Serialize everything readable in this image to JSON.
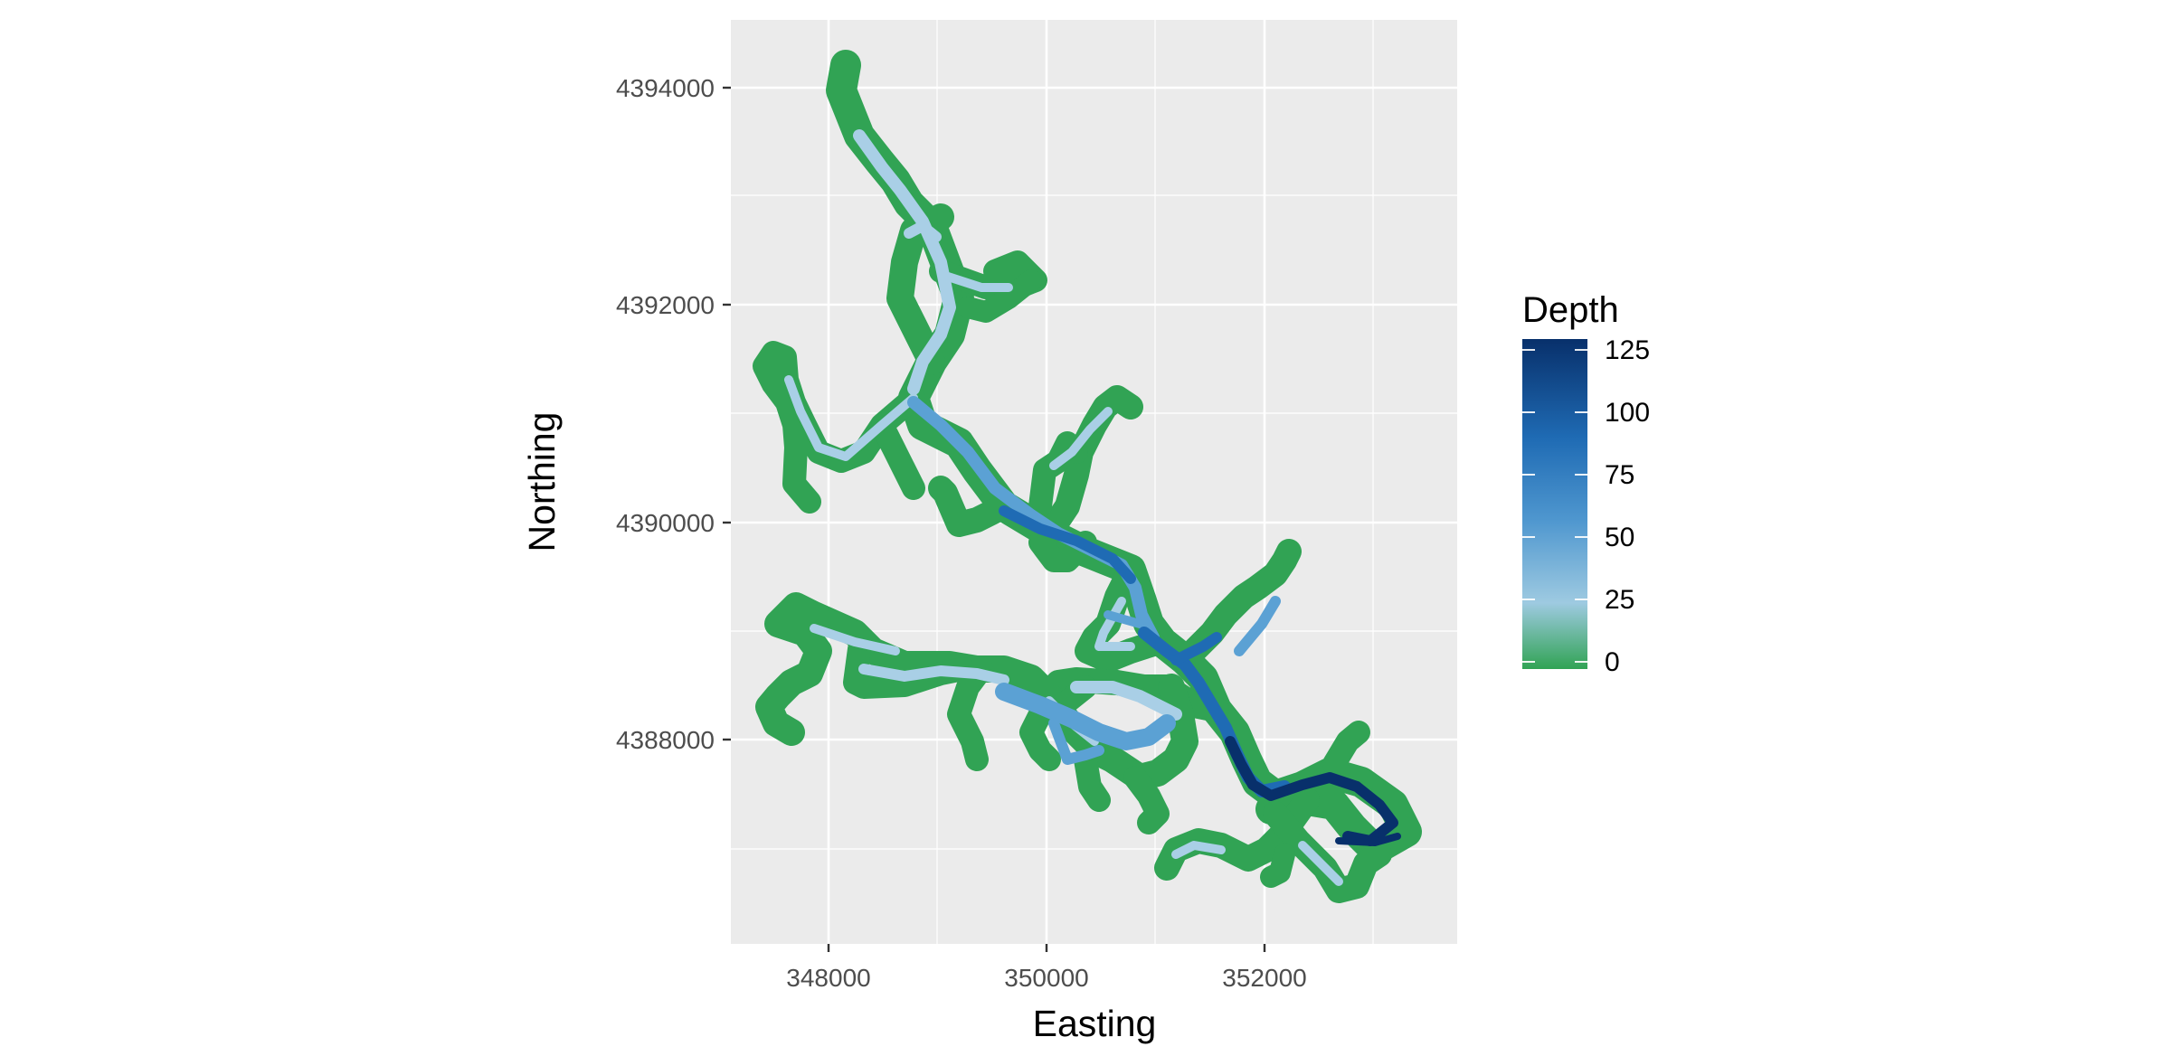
{
  "map": {
    "xlabel": "Easting",
    "ylabel": "Northing",
    "x_ticks": [
      "348000",
      "350000",
      "352000"
    ],
    "y_ticks": [
      "4394000",
      "4392000",
      "4390000",
      "4388000"
    ],
    "x_range": [
      347300,
      353800
    ],
    "y_range": [
      4386300,
      4394600
    ],
    "features": [
      "reservoir-shoreline",
      "reservoir-depth-surface"
    ]
  },
  "legend": {
    "title": "Depth",
    "ticks": [
      "125",
      "100",
      "75",
      "50",
      "25",
      "0"
    ],
    "range": [
      0,
      125
    ]
  },
  "colors": {
    "panel_background": "#ebebeb",
    "gridline": "#ffffff",
    "shoreline": "#31a354",
    "depth_low": "#31a354",
    "depth_mid": "#9ecae1",
    "depth_high": "#08306b"
  }
}
